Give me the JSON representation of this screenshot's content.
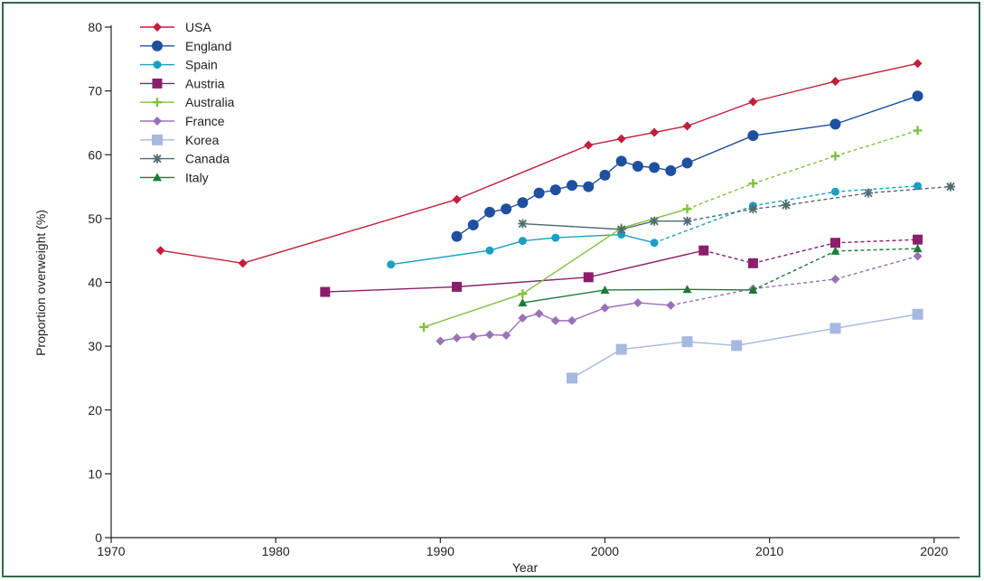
{
  "chart_data": {
    "type": "line",
    "title": "",
    "xlabel": "Year",
    "ylabel": "Proportion overweight (%)",
    "xlim": [
      1970,
      2022
    ],
    "ylim": [
      0,
      80
    ],
    "xticks": [
      1970,
      1980,
      1990,
      2000,
      2010,
      2020
    ],
    "yticks": [
      0,
      10,
      20,
      30,
      40,
      50,
      60,
      70,
      80
    ],
    "grid": false,
    "legend_position": "top-left",
    "series": [
      {
        "name": "USA",
        "color": "#c0203a",
        "marker": "diamond",
        "points": [
          [
            1973,
            45
          ],
          [
            1978,
            43
          ],
          [
            1991,
            53
          ],
          [
            1999,
            61.5
          ],
          [
            2001,
            62.5
          ],
          [
            2003,
            63.5
          ],
          [
            2005,
            64.5
          ],
          [
            2009,
            68.3
          ],
          [
            2014,
            71.5
          ],
          [
            2019,
            74.3
          ]
        ],
        "dashed_from": null
      },
      {
        "name": "England",
        "color": "#1f4fa0",
        "marker": "circle-large",
        "points": [
          [
            1991,
            47.2
          ],
          [
            1992,
            49
          ],
          [
            1993,
            51
          ],
          [
            1994,
            51.5
          ],
          [
            1995,
            52.5
          ],
          [
            1996,
            54
          ],
          [
            1997,
            54.5
          ],
          [
            1998,
            55.2
          ],
          [
            1999,
            55
          ],
          [
            2000,
            56.8
          ],
          [
            2001,
            59
          ],
          [
            2002,
            58.2
          ],
          [
            2003,
            58
          ],
          [
            2004,
            57.5
          ],
          [
            2005,
            58.7
          ],
          [
            2009,
            63
          ],
          [
            2014,
            64.8
          ],
          [
            2019,
            69.2
          ]
        ],
        "dashed_from": null
      },
      {
        "name": "Spain",
        "color": "#1aa0c4",
        "marker": "circle",
        "points": [
          [
            1987,
            42.8
          ],
          [
            1993,
            45
          ],
          [
            1995,
            46.5
          ],
          [
            1997,
            47
          ],
          [
            2001,
            47.5
          ],
          [
            2003,
            46.2
          ],
          [
            2009,
            52
          ],
          [
            2014,
            54.2
          ],
          [
            2019,
            55.1
          ]
        ],
        "dashed_from": 2003
      },
      {
        "name": "Austria",
        "color": "#8b1e6b",
        "marker": "square",
        "points": [
          [
            1983,
            38.5
          ],
          [
            1991,
            39.3
          ],
          [
            1999,
            40.8
          ],
          [
            2006,
            45
          ],
          [
            2009,
            43
          ],
          [
            2014,
            46.2
          ],
          [
            2019,
            46.7
          ]
        ],
        "dashed_from": 2006
      },
      {
        "name": "Australia",
        "color": "#7fc241",
        "marker": "plus",
        "points": [
          [
            1989,
            33
          ],
          [
            1995,
            38.2
          ],
          [
            2001,
            48.5
          ],
          [
            2005,
            51.5
          ],
          [
            2009,
            55.5
          ],
          [
            2014,
            59.8
          ],
          [
            2019,
            63.8
          ]
        ],
        "dashed_from": 2005
      },
      {
        "name": "France",
        "color": "#9a72b8",
        "marker": "diamond",
        "points": [
          [
            1990,
            30.8
          ],
          [
            1991,
            31.3
          ],
          [
            1992,
            31.5
          ],
          [
            1993,
            31.8
          ],
          [
            1994,
            31.7
          ],
          [
            1995,
            34.4
          ],
          [
            1996,
            35.1
          ],
          [
            1997,
            34
          ],
          [
            1998,
            34
          ],
          [
            2000,
            36
          ],
          [
            2002,
            36.8
          ],
          [
            2004,
            36.4
          ],
          [
            2009,
            39
          ],
          [
            2014,
            40.5
          ],
          [
            2019,
            44.1
          ]
        ],
        "dashed_from": 2004
      },
      {
        "name": "Korea",
        "color": "#a6b8df",
        "marker": "square-light",
        "points": [
          [
            1998,
            25
          ],
          [
            2001,
            29.5
          ],
          [
            2005,
            30.7
          ],
          [
            2008,
            30.1
          ],
          [
            2014,
            32.8
          ],
          [
            2019,
            35
          ]
        ],
        "dashed_from": null
      },
      {
        "name": "Canada",
        "color": "#4f6b70",
        "marker": "star",
        "points": [
          [
            1995,
            49.2
          ],
          [
            2001,
            48.3
          ],
          [
            2003,
            49.6
          ],
          [
            2005,
            49.6
          ],
          [
            2009,
            51.5
          ],
          [
            2011,
            52.1
          ],
          [
            2016,
            54
          ],
          [
            2021,
            55
          ]
        ],
        "dashed_from": 2005
      },
      {
        "name": "Italy",
        "color": "#1d7a3a",
        "marker": "triangle",
        "points": [
          [
            1995,
            36.8
          ],
          [
            2000,
            38.8
          ],
          [
            2005,
            38.9
          ],
          [
            2009,
            38.8
          ],
          [
            2014,
            44.9
          ],
          [
            2019,
            45.3
          ]
        ],
        "dashed_from": 2009
      }
    ]
  }
}
